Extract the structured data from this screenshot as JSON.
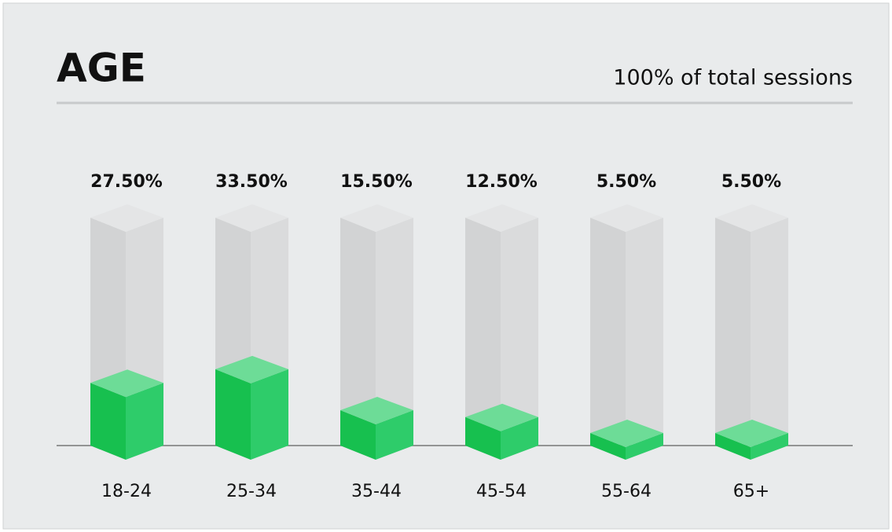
{
  "chart_data": {
    "type": "bar3d",
    "title": "AGE",
    "subtitle": "100% of total sessions",
    "categories": [
      "18-24",
      "25-34",
      "35-44",
      "45-54",
      "55-64",
      "65+"
    ],
    "values": [
      27.5,
      33.5,
      15.5,
      12.5,
      5.5,
      5.5
    ],
    "value_labels": [
      "27.50%",
      "33.50%",
      "15.50%",
      "12.50%",
      "5.50%",
      "5.50%"
    ],
    "color": "#2ecc6a",
    "ylim": [
      0,
      100
    ]
  }
}
